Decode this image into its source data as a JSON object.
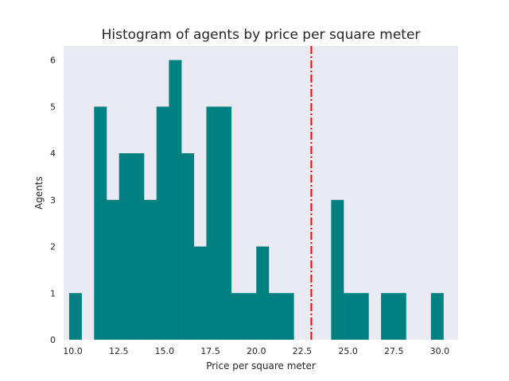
{
  "chart_data": {
    "type": "bar",
    "title": "Histogram of agents by price per square meter",
    "xlabel": "Price per square meter",
    "ylabel": "Agents",
    "xlim": [
      9.5,
      31.0
    ],
    "ylim": [
      0,
      6.3
    ],
    "xticks": [
      "10.0",
      "12.5",
      "15.0",
      "17.5",
      "20.0",
      "22.5",
      "25.0",
      "27.5",
      "30.0"
    ],
    "yticks": [
      "0",
      "1",
      "2",
      "3",
      "4",
      "5",
      "6"
    ],
    "bin_width": 0.68,
    "bins": [
      {
        "x0": 9.8,
        "count": 1
      },
      {
        "x0": 10.48,
        "count": 0
      },
      {
        "x0": 11.16,
        "count": 5
      },
      {
        "x0": 11.84,
        "count": 3
      },
      {
        "x0": 12.52,
        "count": 4
      },
      {
        "x0": 13.2,
        "count": 4
      },
      {
        "x0": 13.88,
        "count": 3
      },
      {
        "x0": 14.56,
        "count": 5
      },
      {
        "x0": 15.24,
        "count": 6
      },
      {
        "x0": 15.92,
        "count": 4
      },
      {
        "x0": 16.6,
        "count": 2
      },
      {
        "x0": 17.28,
        "count": 5
      },
      {
        "x0": 17.96,
        "count": 5
      },
      {
        "x0": 18.64,
        "count": 1
      },
      {
        "x0": 19.32,
        "count": 1
      },
      {
        "x0": 20.0,
        "count": 2
      },
      {
        "x0": 20.68,
        "count": 1
      },
      {
        "x0": 21.36,
        "count": 1
      },
      {
        "x0": 22.04,
        "count": 0
      },
      {
        "x0": 22.72,
        "count": 0
      },
      {
        "x0": 23.4,
        "count": 0
      },
      {
        "x0": 24.08,
        "count": 3
      },
      {
        "x0": 24.76,
        "count": 1
      },
      {
        "x0": 25.44,
        "count": 1
      },
      {
        "x0": 26.12,
        "count": 0
      },
      {
        "x0": 26.8,
        "count": 1
      },
      {
        "x0": 27.48,
        "count": 1
      },
      {
        "x0": 28.16,
        "count": 0
      },
      {
        "x0": 28.84,
        "count": 0
      },
      {
        "x0": 29.52,
        "count": 1
      }
    ],
    "vline": {
      "x": 23.0,
      "style": "dash-dot",
      "color": "#ff0000"
    },
    "bar_color": "#008080",
    "background_color": "#eaeaf2",
    "grid": false,
    "legend": "none"
  }
}
